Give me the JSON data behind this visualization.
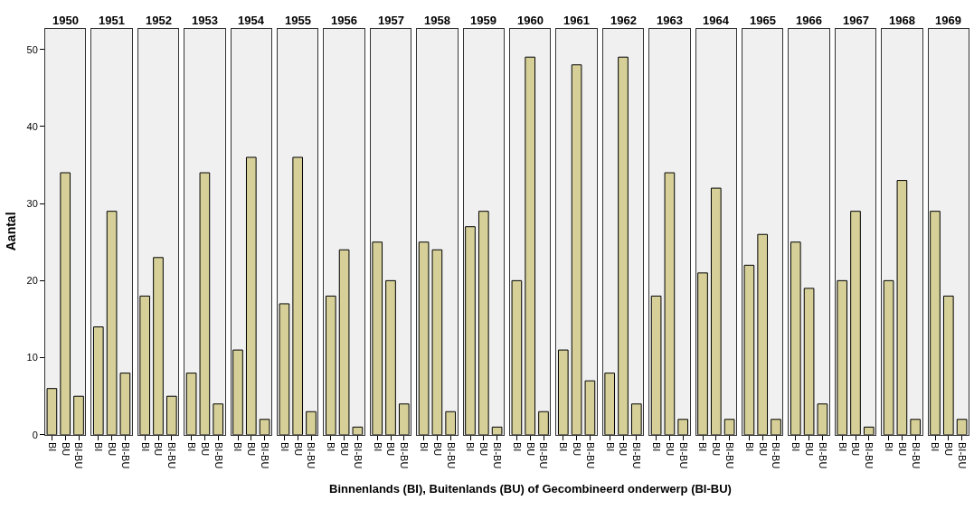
{
  "chart_data": [
    {
      "type": "bar",
      "title": "1950",
      "ylabel": "Aantal",
      "categories": [
        "BI",
        "BU",
        "BI-BU"
      ],
      "values": [
        6,
        34,
        5
      ],
      "color": "#d6d098",
      "ylim": [
        0,
        52.7
      ],
      "yticks": [
        0,
        10,
        20,
        30,
        40,
        50
      ],
      "grid": false
    },
    {
      "type": "bar",
      "title": "1951",
      "categories": [
        "BI",
        "BU",
        "BI-BU"
      ],
      "values": [
        14,
        29,
        8
      ],
      "color": "#d6d098",
      "ylim": [
        0,
        52.7
      ],
      "yticks": [
        0,
        10,
        20,
        30,
        40,
        50
      ],
      "tick_labels": "x",
      "grid": false
    },
    {
      "type": "bar",
      "title": "1952",
      "categories": [
        "BI",
        "BU",
        "BI-BU"
      ],
      "values": [
        18,
        23,
        5
      ],
      "color": "#d6d098",
      "ylim": [
        0,
        52.7
      ],
      "yticks": [
        0,
        10,
        20,
        30,
        40,
        50
      ],
      "tick_labels": "x",
      "grid": false
    },
    {
      "type": "bar",
      "title": "1953",
      "categories": [
        "BI",
        "BU",
        "BI-BU"
      ],
      "values": [
        8,
        34,
        4
      ],
      "color": "#d6d098",
      "ylim": [
        0,
        52.7
      ],
      "yticks": [
        0,
        10,
        20,
        30,
        40,
        50
      ],
      "tick_labels": "x",
      "grid": false
    },
    {
      "type": "bar",
      "title": "1954",
      "categories": [
        "BI",
        "BU",
        "BI-BU"
      ],
      "values": [
        11,
        36,
        2
      ],
      "color": "#d6d098",
      "ylim": [
        0,
        52.7
      ],
      "yticks": [
        0,
        10,
        20,
        30,
        40,
        50
      ],
      "tick_labels": "x",
      "grid": false
    },
    {
      "type": "bar",
      "title": "1955",
      "categories": [
        "BI",
        "BU",
        "BI-BU"
      ],
      "values": [
        17,
        36,
        3
      ],
      "color": "#d6d098",
      "ylim": [
        0,
        52.7
      ],
      "yticks": [
        0,
        10,
        20,
        30,
        40,
        50
      ],
      "tick_labels": "x",
      "grid": false
    },
    {
      "type": "bar",
      "title": "1956",
      "categories": [
        "BI",
        "BU",
        "BI-BU"
      ],
      "values": [
        18,
        24,
        1
      ],
      "color": "#d6d098",
      "ylim": [
        0,
        52.7
      ],
      "yticks": [
        0,
        10,
        20,
        30,
        40,
        50
      ],
      "tick_labels": "x",
      "grid": false
    },
    {
      "type": "bar",
      "title": "1957",
      "categories": [
        "BI",
        "BU",
        "BI-BU"
      ],
      "values": [
        25,
        20,
        4
      ],
      "color": "#d6d098",
      "ylim": [
        0,
        52.7
      ],
      "yticks": [
        0,
        10,
        20,
        30,
        40,
        50
      ],
      "tick_labels": "x",
      "grid": false
    },
    {
      "type": "bar",
      "title": "1958",
      "categories": [
        "BI",
        "BU",
        "BI-BU"
      ],
      "values": [
        25,
        24,
        3
      ],
      "color": "#d6d098",
      "ylim": [
        0,
        52.7
      ],
      "yticks": [
        0,
        10,
        20,
        30,
        40,
        50
      ],
      "tick_labels": "x",
      "grid": false
    },
    {
      "type": "bar",
      "title": "1959",
      "categories": [
        "BI",
        "BU",
        "BI-BU"
      ],
      "values": [
        27,
        29,
        1
      ],
      "color": "#d6d098",
      "ylim": [
        0,
        52.7
      ],
      "yticks": [
        0,
        10,
        20,
        30,
        40,
        50
      ],
      "tick_labels": "x",
      "grid": false
    },
    {
      "type": "bar",
      "title": "1960",
      "xlabel": "Binnenlands (BI), Buitenlands (BU) of Gecombineerd onderwerp (BI-BU)",
      "categories": [
        "BI",
        "BU",
        "BI-BU"
      ],
      "values": [
        20,
        49,
        3
      ],
      "color": "#d6d098",
      "ylim": [
        0,
        52.7
      ],
      "yticks": [
        0,
        10,
        20,
        30,
        40,
        50
      ],
      "tick_labels": "x",
      "grid": false
    },
    {
      "type": "bar",
      "title": "1961",
      "categories": [
        "BI",
        "BU",
        "BI-BU"
      ],
      "values": [
        11,
        48,
        7
      ],
      "color": "#d6d098",
      "ylim": [
        0,
        52.7
      ],
      "yticks": [
        0,
        10,
        20,
        30,
        40,
        50
      ],
      "tick_labels": "x",
      "grid": false
    },
    {
      "type": "bar",
      "title": "1962",
      "categories": [
        "BI",
        "BU",
        "BI-BU"
      ],
      "values": [
        8,
        49,
        4
      ],
      "color": "#d6d098",
      "ylim": [
        0,
        52.7
      ],
      "yticks": [
        0,
        10,
        20,
        30,
        40,
        50
      ],
      "tick_labels": "x",
      "grid": false
    },
    {
      "type": "bar",
      "title": "1963",
      "categories": [
        "BI",
        "BU",
        "BI-BU"
      ],
      "values": [
        18,
        34,
        2
      ],
      "color": "#d6d098",
      "ylim": [
        0,
        52.7
      ],
      "yticks": [
        0,
        10,
        20,
        30,
        40,
        50
      ],
      "tick_labels": "x",
      "grid": false
    },
    {
      "type": "bar",
      "title": "1964",
      "categories": [
        "BI",
        "BU",
        "BI-BU"
      ],
      "values": [
        21,
        32,
        2
      ],
      "color": "#d6d098",
      "ylim": [
        0,
        52.7
      ],
      "yticks": [
        0,
        10,
        20,
        30,
        40,
        50
      ],
      "tick_labels": "x",
      "grid": false
    },
    {
      "type": "bar",
      "title": "1965",
      "categories": [
        "BI",
        "BU",
        "BI-BU"
      ],
      "values": [
        22,
        26,
        2
      ],
      "color": "#d6d098",
      "ylim": [
        0,
        52.7
      ],
      "yticks": [
        0,
        10,
        20,
        30,
        40,
        50
      ],
      "tick_labels": "x",
      "grid": false
    },
    {
      "type": "bar",
      "title": "1966",
      "categories": [
        "BI",
        "BU",
        "BI-BU"
      ],
      "values": [
        25,
        19,
        4
      ],
      "color": "#d6d098",
      "ylim": [
        0,
        52.7
      ],
      "yticks": [
        0,
        10,
        20,
        30,
        40,
        50
      ],
      "tick_labels": "x",
      "grid": false
    },
    {
      "type": "bar",
      "title": "1967",
      "categories": [
        "BI",
        "BU",
        "BI-BU"
      ],
      "values": [
        20,
        29,
        1
      ],
      "color": "#d6d098",
      "ylim": [
        0,
        52.7
      ],
      "yticks": [
        0,
        10,
        20,
        30,
        40,
        50
      ],
      "tick_labels": "x",
      "grid": false
    },
    {
      "type": "bar",
      "title": "1968",
      "categories": [
        "BI",
        "BU",
        "BI-BU"
      ],
      "values": [
        20,
        33,
        2
      ],
      "color": "#d6d098",
      "ylim": [
        0,
        52.7
      ],
      "yticks": [
        0,
        10,
        20,
        30,
        40,
        50
      ],
      "tick_labels": "x",
      "grid": false
    },
    {
      "type": "bar",
      "title": "1969",
      "categories": [
        "BI",
        "BU",
        "BI-BU"
      ],
      "values": [
        29,
        18,
        2
      ],
      "color": "#d6d098",
      "ylim": [
        0,
        52.7
      ],
      "yticks": [
        0,
        10,
        20,
        30,
        40,
        50
      ],
      "tick_labels": "x",
      "grid": false
    }
  ]
}
